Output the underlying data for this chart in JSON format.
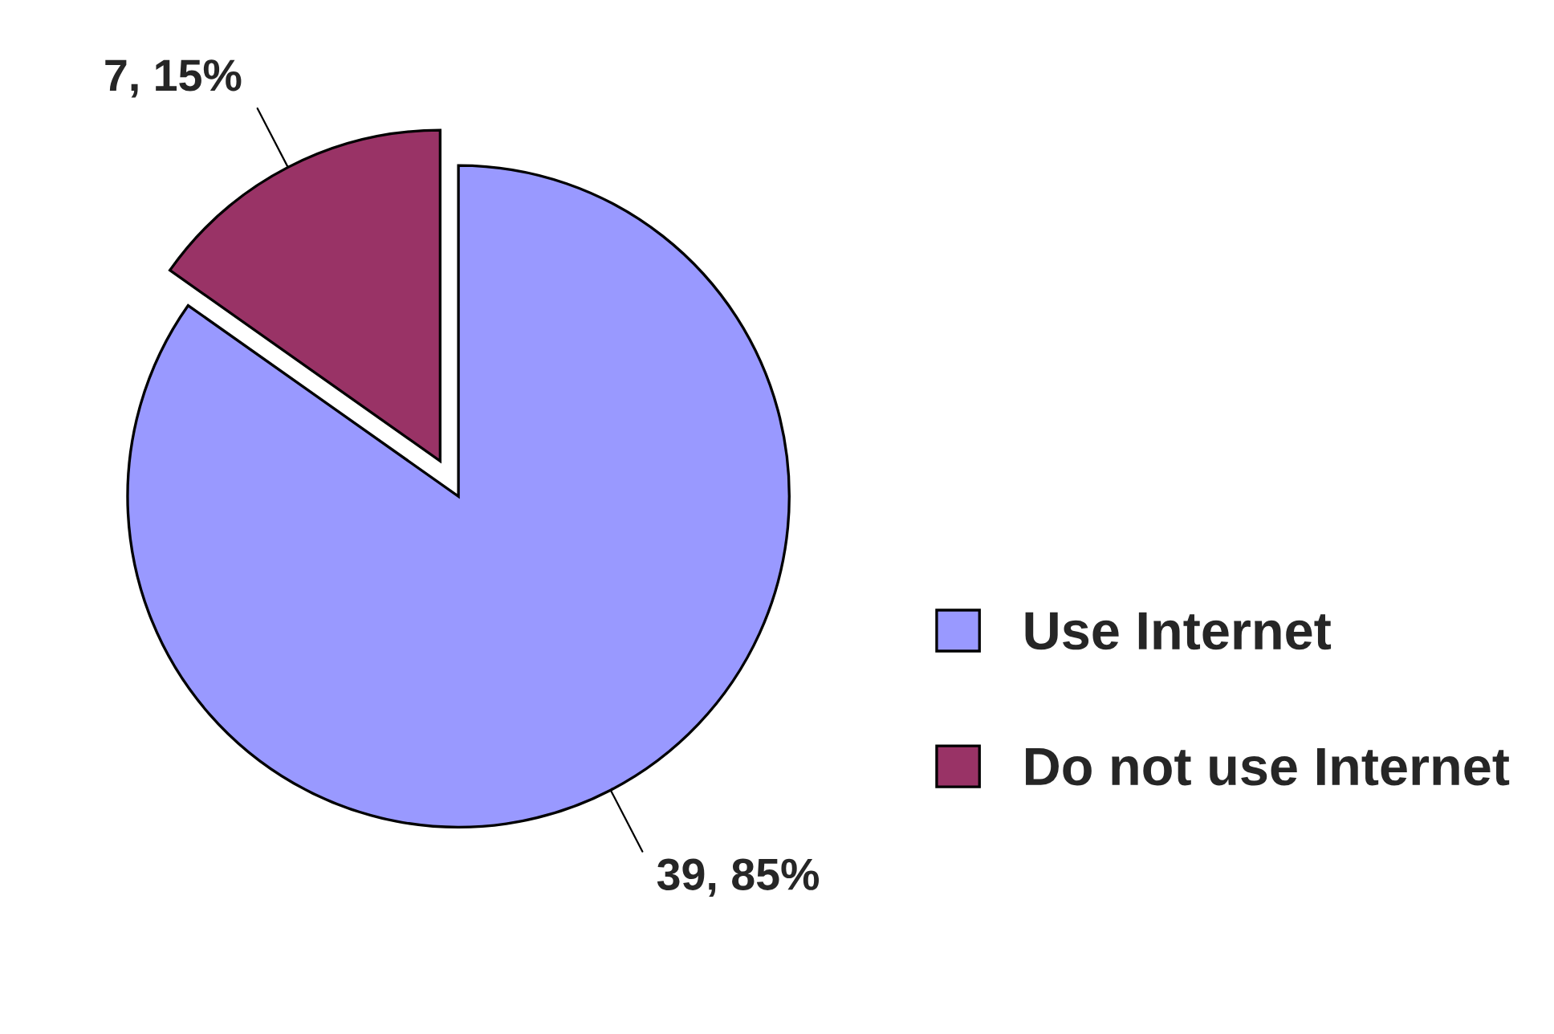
{
  "chart_data": {
    "type": "pie",
    "categories": [
      "Use Internet",
      "Do not use Internet"
    ],
    "values": [
      39,
      7
    ],
    "value_labels": [
      "39, 85%",
      "7, 15%"
    ],
    "colors": [
      "#9999ff",
      "#993366"
    ],
    "legend": "right"
  }
}
